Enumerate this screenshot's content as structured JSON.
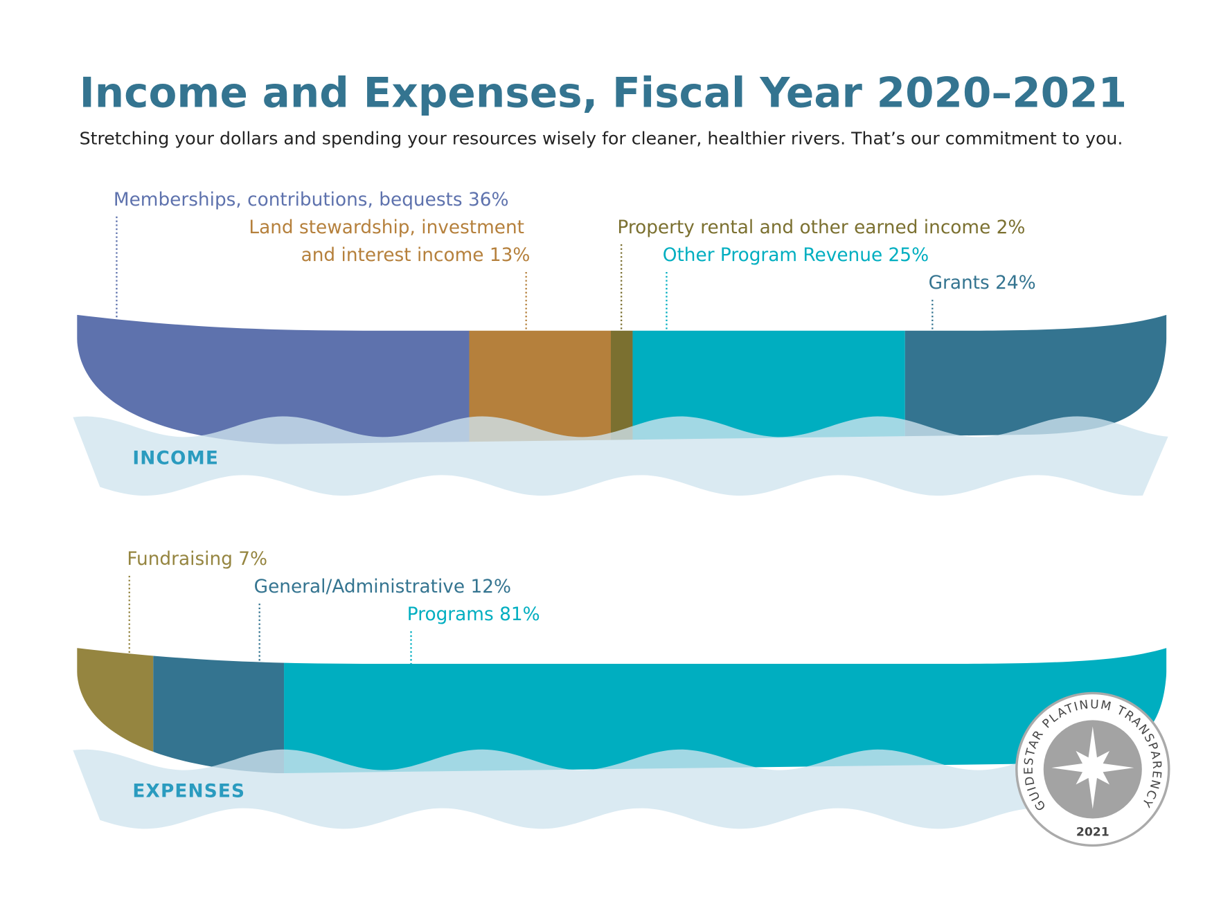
{
  "title": "Income and Expenses, Fiscal Year 2020–2021",
  "subtitle": "Stretching your dollars and spending your resources wisely for cleaner, healthier rivers. That’s our commitment to you.",
  "chart_data": [
    {
      "type": "stacked-bar",
      "title": "INCOME",
      "series": [
        {
          "name": "Memberships, contributions, bequests",
          "color": "#5e72ad",
          "values": [
            36
          ],
          "value_labels": [
            "36%"
          ]
        },
        {
          "name": "Land stewardship, investment and interest income",
          "color": "#b5803c",
          "values": [
            13
          ],
          "value_labels": [
            "13%"
          ]
        },
        {
          "name": "Property rental and other earned income",
          "color": "#7b7030",
          "values": [
            2
          ],
          "value_labels": [
            "2%"
          ]
        },
        {
          "name": "Other Program Revenue",
          "color": "#00aec0",
          "values": [
            25
          ],
          "value_labels": [
            "25%"
          ]
        },
        {
          "name": "Grants",
          "color": "#347490",
          "values": [
            24
          ],
          "value_labels": [
            "24%"
          ]
        }
      ]
    },
    {
      "type": "stacked-bar",
      "title": "EXPENSES",
      "series": [
        {
          "name": "Fundraising",
          "color": "#958540",
          "values": [
            7
          ],
          "value_labels": [
            "7%"
          ]
        },
        {
          "name": "General/Administrative",
          "color": "#347490",
          "values": [
            12
          ],
          "value_labels": [
            "12%"
          ]
        },
        {
          "name": "Programs",
          "color": "#00aec0",
          "values": [
            81
          ],
          "value_labels": [
            "81%"
          ]
        }
      ]
    }
  ],
  "badge": {
    "text": "GUIDESTAR PLATINUM TRANSPARENCY",
    "year": "2021"
  }
}
